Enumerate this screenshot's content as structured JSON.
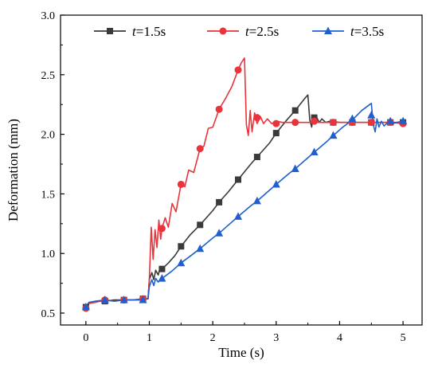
{
  "chart_data": {
    "type": "line",
    "xlabel": "Time (s)",
    "ylabel": "Deformation (mm)",
    "xlim": [
      -0.4,
      5.3
    ],
    "ylim": [
      0.4,
      3.0
    ],
    "xticks": [
      0,
      1,
      2,
      3,
      4,
      5
    ],
    "yticks": [
      0.5,
      1.0,
      1.5,
      2.0,
      2.5,
      3.0
    ],
    "xtick_labels": [
      "0",
      "1",
      "2",
      "3",
      "4",
      "5"
    ],
    "ytick_labels": [
      "0.5",
      "1.0",
      "1.5",
      "2.0",
      "2.5",
      "3.0"
    ],
    "legend_position": "top",
    "grid": false,
    "series": [
      {
        "name": "t=1.5s",
        "name_var": "t",
        "name_rest": "=1.5s",
        "color": "#3a3a3a",
        "marker": "square",
        "line": [
          [
            0,
            0.55
          ],
          [
            0.05,
            0.59
          ],
          [
            0.15,
            0.6
          ],
          [
            0.3,
            0.6
          ],
          [
            0.45,
            0.61
          ],
          [
            0.6,
            0.61
          ],
          [
            0.75,
            0.61
          ],
          [
            0.9,
            0.62
          ],
          [
            0.98,
            0.62
          ],
          [
            1.0,
            0.78
          ],
          [
            1.04,
            0.84
          ],
          [
            1.07,
            0.78
          ],
          [
            1.1,
            0.86
          ],
          [
            1.14,
            0.82
          ],
          [
            1.17,
            0.88
          ],
          [
            1.2,
            0.87
          ],
          [
            1.3,
            0.92
          ],
          [
            1.4,
            0.98
          ],
          [
            1.5,
            1.06
          ],
          [
            1.65,
            1.16
          ],
          [
            1.8,
            1.24
          ],
          [
            2.0,
            1.36
          ],
          [
            2.1,
            1.43
          ],
          [
            2.25,
            1.52
          ],
          [
            2.4,
            1.62
          ],
          [
            2.6,
            1.75
          ],
          [
            2.7,
            1.81
          ],
          [
            2.9,
            1.93
          ],
          [
            3.0,
            2.01
          ],
          [
            3.15,
            2.11
          ],
          [
            3.3,
            2.2
          ],
          [
            3.45,
            2.3
          ],
          [
            3.5,
            2.33
          ],
          [
            3.53,
            2.12
          ],
          [
            3.56,
            2.06
          ],
          [
            3.58,
            2.16
          ],
          [
            3.61,
            2.09
          ],
          [
            3.64,
            2.14
          ],
          [
            3.68,
            2.1
          ],
          [
            3.72,
            2.13
          ],
          [
            3.78,
            2.1
          ],
          [
            3.85,
            2.11
          ],
          [
            4.0,
            2.1
          ],
          [
            4.2,
            2.1
          ],
          [
            4.5,
            2.1
          ],
          [
            4.8,
            2.1
          ],
          [
            5.0,
            2.1
          ]
        ],
        "markers": [
          [
            0,
            0.55
          ],
          [
            0.3,
            0.6
          ],
          [
            0.6,
            0.61
          ],
          [
            0.9,
            0.62
          ],
          [
            1.2,
            0.87
          ],
          [
            1.5,
            1.06
          ],
          [
            1.8,
            1.24
          ],
          [
            2.1,
            1.43
          ],
          [
            2.4,
            1.62
          ],
          [
            2.7,
            1.81
          ],
          [
            3.0,
            2.01
          ],
          [
            3.3,
            2.2
          ],
          [
            3.6,
            2.14
          ],
          [
            3.9,
            2.1
          ],
          [
            4.2,
            2.1
          ],
          [
            4.5,
            2.1
          ],
          [
            4.8,
            2.1
          ],
          [
            5.0,
            2.1
          ]
        ]
      },
      {
        "name": "t=2.5s",
        "name_var": "t",
        "name_rest": "=2.5s",
        "color": "#e8343a",
        "marker": "circle",
        "line": [
          [
            0,
            0.54
          ],
          [
            0.05,
            0.58
          ],
          [
            0.15,
            0.59
          ],
          [
            0.3,
            0.61
          ],
          [
            0.45,
            0.6
          ],
          [
            0.6,
            0.61
          ],
          [
            0.75,
            0.61
          ],
          [
            0.9,
            0.62
          ],
          [
            0.98,
            0.62
          ],
          [
            1.0,
            0.78
          ],
          [
            1.03,
            1.22
          ],
          [
            1.06,
            0.95
          ],
          [
            1.09,
            1.2
          ],
          [
            1.12,
            1.05
          ],
          [
            1.15,
            1.28
          ],
          [
            1.18,
            1.12
          ],
          [
            1.2,
            1.21
          ],
          [
            1.25,
            1.3
          ],
          [
            1.3,
            1.22
          ],
          [
            1.36,
            1.42
          ],
          [
            1.42,
            1.35
          ],
          [
            1.5,
            1.58
          ],
          [
            1.56,
            1.56
          ],
          [
            1.62,
            1.7
          ],
          [
            1.7,
            1.68
          ],
          [
            1.8,
            1.88
          ],
          [
            1.86,
            1.9
          ],
          [
            1.93,
            2.05
          ],
          [
            2.0,
            2.06
          ],
          [
            2.1,
            2.21
          ],
          [
            2.2,
            2.3
          ],
          [
            2.3,
            2.4
          ],
          [
            2.4,
            2.54
          ],
          [
            2.45,
            2.6
          ],
          [
            2.5,
            2.64
          ],
          [
            2.53,
            2.08
          ],
          [
            2.56,
            1.99
          ],
          [
            2.59,
            2.2
          ],
          [
            2.62,
            2.02
          ],
          [
            2.66,
            2.18
          ],
          [
            2.7,
            2.09
          ],
          [
            2.75,
            2.15
          ],
          [
            2.8,
            2.09
          ],
          [
            2.86,
            2.13
          ],
          [
            2.93,
            2.09
          ],
          [
            3.0,
            2.11
          ],
          [
            3.1,
            2.1
          ],
          [
            3.3,
            2.1
          ],
          [
            3.6,
            2.1
          ],
          [
            3.9,
            2.1
          ],
          [
            4.2,
            2.1
          ],
          [
            4.5,
            2.1
          ],
          [
            4.8,
            2.1
          ],
          [
            5.0,
            2.09
          ]
        ],
        "markers": [
          [
            0,
            0.54
          ],
          [
            0.3,
            0.61
          ],
          [
            0.6,
            0.61
          ],
          [
            0.9,
            0.62
          ],
          [
            1.2,
            1.21
          ],
          [
            1.5,
            1.58
          ],
          [
            1.8,
            1.88
          ],
          [
            2.1,
            2.21
          ],
          [
            2.4,
            2.54
          ],
          [
            2.7,
            2.14
          ],
          [
            3.0,
            2.09
          ],
          [
            3.3,
            2.1
          ],
          [
            3.6,
            2.11
          ],
          [
            3.9,
            2.1
          ],
          [
            4.2,
            2.1
          ],
          [
            4.5,
            2.1
          ],
          [
            4.8,
            2.1
          ],
          [
            5.0,
            2.09
          ]
        ]
      },
      {
        "name": "t=3.5s",
        "name_var": "t",
        "name_rest": "=3.5s",
        "color": "#1f5fd0",
        "marker": "triangle",
        "line": [
          [
            0,
            0.55
          ],
          [
            0.05,
            0.59
          ],
          [
            0.15,
            0.6
          ],
          [
            0.3,
            0.61
          ],
          [
            0.45,
            0.6
          ],
          [
            0.6,
            0.61
          ],
          [
            0.75,
            0.61
          ],
          [
            0.9,
            0.61
          ],
          [
            0.98,
            0.62
          ],
          [
            1.0,
            0.72
          ],
          [
            1.04,
            0.78
          ],
          [
            1.07,
            0.73
          ],
          [
            1.1,
            0.79
          ],
          [
            1.14,
            0.76
          ],
          [
            1.2,
            0.79
          ],
          [
            1.35,
            0.85
          ],
          [
            1.5,
            0.92
          ],
          [
            1.65,
            0.98
          ],
          [
            1.8,
            1.04
          ],
          [
            2.0,
            1.13
          ],
          [
            2.1,
            1.17
          ],
          [
            2.25,
            1.24
          ],
          [
            2.4,
            1.31
          ],
          [
            2.6,
            1.4
          ],
          [
            2.7,
            1.44
          ],
          [
            2.85,
            1.51
          ],
          [
            3.0,
            1.58
          ],
          [
            3.2,
            1.67
          ],
          [
            3.3,
            1.71
          ],
          [
            3.45,
            1.78
          ],
          [
            3.6,
            1.85
          ],
          [
            3.8,
            1.94
          ],
          [
            3.9,
            1.99
          ],
          [
            4.05,
            2.06
          ],
          [
            4.2,
            2.12
          ],
          [
            4.35,
            2.2
          ],
          [
            4.5,
            2.26
          ],
          [
            4.53,
            2.08
          ],
          [
            4.56,
            2.02
          ],
          [
            4.59,
            2.13
          ],
          [
            4.62,
            2.06
          ],
          [
            4.66,
            2.11
          ],
          [
            4.7,
            2.07
          ],
          [
            4.76,
            2.1
          ],
          [
            4.82,
            2.09
          ],
          [
            4.9,
            2.1
          ],
          [
            5.0,
            2.11
          ]
        ],
        "markers": [
          [
            0,
            0.55
          ],
          [
            0.3,
            0.61
          ],
          [
            0.6,
            0.61
          ],
          [
            0.9,
            0.61
          ],
          [
            1.2,
            0.79
          ],
          [
            1.5,
            0.92
          ],
          [
            1.8,
            1.04
          ],
          [
            2.1,
            1.17
          ],
          [
            2.4,
            1.31
          ],
          [
            2.7,
            1.44
          ],
          [
            3.0,
            1.58
          ],
          [
            3.3,
            1.71
          ],
          [
            3.6,
            1.85
          ],
          [
            3.9,
            1.99
          ],
          [
            4.2,
            2.13
          ],
          [
            4.5,
            2.16
          ],
          [
            4.8,
            2.11
          ],
          [
            5.0,
            2.11
          ]
        ]
      }
    ]
  }
}
